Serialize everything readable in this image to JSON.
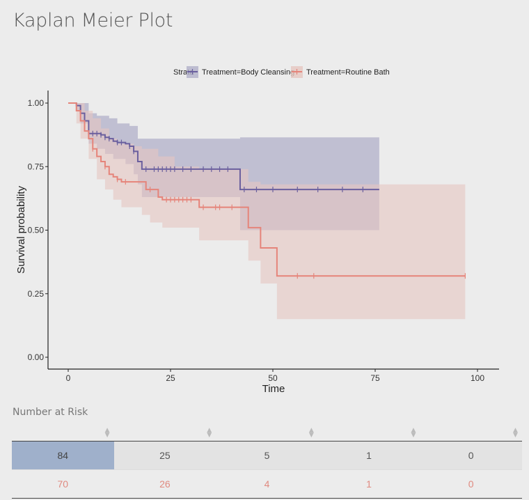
{
  "page": {
    "title": "Kaplan Meier Plot",
    "risk_section_label": "Number at Risk"
  },
  "colors": {
    "body_cleansing_line": "#6a5f9e",
    "body_cleansing_band": "#b2b0c9",
    "routine_bath_line": "#e5847a",
    "routine_bath_band": "#e6c7c1",
    "risk_highlight": "#9fb0cb",
    "risk_row_b_text": "#e08a80"
  },
  "chart_data": {
    "type": "line",
    "title": "",
    "xlabel": "Time",
    "ylabel": "Survival probability",
    "xlim": [
      -10,
      105
    ],
    "ylim": [
      -0.05,
      1.05
    ],
    "x_ticks": [
      0,
      25,
      50,
      75,
      100
    ],
    "x_tick_labels": [
      "0",
      "25",
      "50",
      "75",
      "100"
    ],
    "y_ticks": [
      0,
      0.25,
      0.5,
      0.75,
      1
    ],
    "y_tick_labels": [
      "0.00",
      "0.25",
      "0.50",
      "0.75",
      "1.00"
    ],
    "grid": false,
    "legend": {
      "title": "Strata",
      "placement": "top",
      "entries": [
        "Treatment=Body Cleansing",
        "Treatment=Routine Bath"
      ]
    },
    "series": [
      {
        "name": "Treatment=Body Cleansing",
        "color": "#6a5f9e",
        "band_color": "#b2b0c9",
        "steps": [
          [
            0,
            1
          ],
          [
            2,
            0.99
          ],
          [
            3,
            0.96
          ],
          [
            4,
            0.93
          ],
          [
            5,
            0.88
          ],
          [
            8,
            0.875
          ],
          [
            9,
            0.865
          ],
          [
            10,
            0.86
          ],
          [
            11,
            0.85
          ],
          [
            12,
            0.845
          ],
          [
            14,
            0.84
          ],
          [
            15,
            0.83
          ],
          [
            16,
            0.81
          ],
          [
            17,
            0.77
          ],
          [
            18,
            0.74
          ],
          [
            42,
            0.74
          ],
          [
            42,
            0.66
          ],
          [
            76,
            0.66
          ]
        ],
        "lower": [
          [
            0,
            1
          ],
          [
            2,
            0.97
          ],
          [
            3,
            0.92
          ],
          [
            5,
            0.84
          ],
          [
            7,
            0.82
          ],
          [
            9,
            0.8
          ],
          [
            11,
            0.78
          ],
          [
            14,
            0.76
          ],
          [
            16,
            0.72
          ],
          [
            17,
            0.68
          ],
          [
            18,
            0.63
          ],
          [
            42,
            0.63
          ],
          [
            42,
            0.5
          ],
          [
            76,
            0.5
          ]
        ],
        "upper": [
          [
            0,
            1
          ],
          [
            2,
            1
          ],
          [
            5,
            0.96
          ],
          [
            7,
            0.95
          ],
          [
            10,
            0.94
          ],
          [
            12,
            0.92
          ],
          [
            15,
            0.91
          ],
          [
            17,
            0.86
          ],
          [
            18,
            0.86
          ],
          [
            42,
            0.86
          ],
          [
            42,
            0.865
          ],
          [
            76,
            0.865
          ]
        ],
        "censor_times": [
          6,
          7,
          8,
          9,
          10,
          12,
          13,
          15,
          16,
          19,
          21,
          22,
          23,
          24,
          25,
          26,
          28,
          30,
          33,
          35,
          37,
          39,
          43,
          46,
          50,
          56,
          61,
          67,
          72
        ]
      },
      {
        "name": "Treatment=Routine Bath",
        "color": "#e5847a",
        "band_color": "#e6c7c1",
        "steps": [
          [
            0,
            1
          ],
          [
            2,
            0.97
          ],
          [
            3,
            0.93
          ],
          [
            4,
            0.89
          ],
          [
            5,
            0.86
          ],
          [
            6,
            0.82
          ],
          [
            7,
            0.79
          ],
          [
            8,
            0.77
          ],
          [
            9,
            0.75
          ],
          [
            10,
            0.72
          ],
          [
            11,
            0.71
          ],
          [
            12,
            0.7
          ],
          [
            13,
            0.69
          ],
          [
            18,
            0.69
          ],
          [
            19,
            0.66
          ],
          [
            22,
            0.63
          ],
          [
            23,
            0.62
          ],
          [
            32,
            0.62
          ],
          [
            32,
            0.59
          ],
          [
            44,
            0.59
          ],
          [
            44,
            0.51
          ],
          [
            47,
            0.51
          ],
          [
            47,
            0.43
          ],
          [
            51,
            0.43
          ],
          [
            51,
            0.32
          ],
          [
            97,
            0.32
          ]
        ],
        "lower": [
          [
            0,
            1
          ],
          [
            2,
            0.92
          ],
          [
            3,
            0.86
          ],
          [
            5,
            0.78
          ],
          [
            7,
            0.7
          ],
          [
            9,
            0.66
          ],
          [
            11,
            0.62
          ],
          [
            13,
            0.59
          ],
          [
            15,
            0.59
          ],
          [
            18,
            0.56
          ],
          [
            20,
            0.53
          ],
          [
            23,
            0.51
          ],
          [
            32,
            0.51
          ],
          [
            32,
            0.46
          ],
          [
            44,
            0.46
          ],
          [
            44,
            0.38
          ],
          [
            47,
            0.38
          ],
          [
            47,
            0.29
          ],
          [
            51,
            0.29
          ],
          [
            51,
            0.15
          ],
          [
            97,
            0.15
          ]
        ],
        "upper": [
          [
            0,
            1
          ],
          [
            2,
            1
          ],
          [
            4,
            0.97
          ],
          [
            6,
            0.94
          ],
          [
            8,
            0.9
          ],
          [
            10,
            0.86
          ],
          [
            12,
            0.84
          ],
          [
            16,
            0.83
          ],
          [
            18,
            0.82
          ],
          [
            22,
            0.79
          ],
          [
            26,
            0.75
          ],
          [
            32,
            0.75
          ],
          [
            32,
            0.74
          ],
          [
            44,
            0.74
          ],
          [
            44,
            0.69
          ],
          [
            47,
            0.69
          ],
          [
            47,
            0.68
          ],
          [
            97,
            0.68
          ]
        ],
        "censor_times": [
          6,
          9,
          12,
          14,
          20,
          24,
          25,
          26,
          27,
          28,
          29,
          30,
          33,
          36,
          37,
          40,
          56,
          60,
          97
        ]
      }
    ]
  },
  "risk_table": {
    "rows": [
      {
        "values": [
          "84",
          "25",
          "5",
          "1",
          "0"
        ],
        "highlighted_index": 0
      },
      {
        "values": [
          "70",
          "26",
          "4",
          "1",
          "0"
        ]
      }
    ]
  }
}
